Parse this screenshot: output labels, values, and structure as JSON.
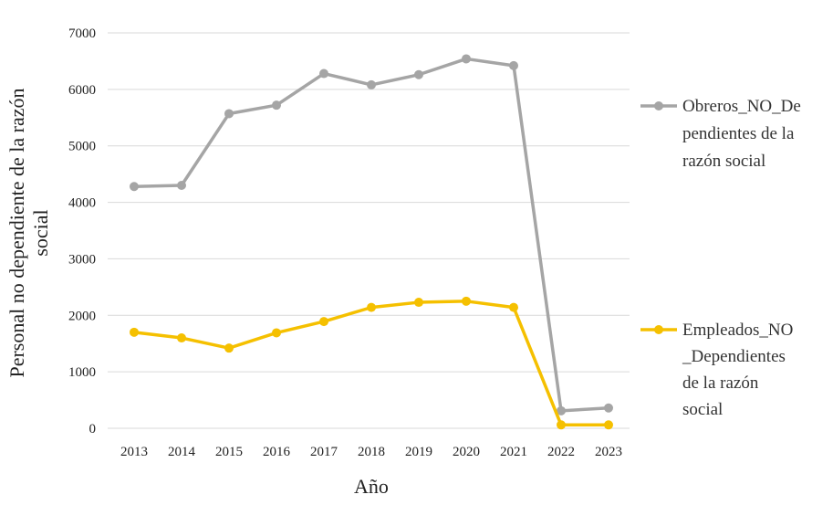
{
  "chart_data": {
    "type": "line",
    "xlabel": "Año",
    "ylabel_lines": [
      "Personal no dependiente de la razón",
      "social"
    ],
    "categories": [
      "2013",
      "2014",
      "2015",
      "2016",
      "2017",
      "2018",
      "2019",
      "2020",
      "2021",
      "2022",
      "2023"
    ],
    "ylim": [
      0,
      7000
    ],
    "yticks": [
      "0",
      "1000",
      "2000",
      "3000",
      "4000",
      "5000",
      "6000",
      "7000"
    ],
    "grid": "horizontal",
    "legend_position": "right",
    "series": [
      {
        "name": "Obreros_NO_Dependientes de la razón social",
        "legend_lines": [
          "Obreros_NO_De",
          "pendientes de la",
          "razón social"
        ],
        "color": "#a5a5a5",
        "values": [
          4280,
          4300,
          5570,
          5720,
          6280,
          6080,
          6260,
          6540,
          6420,
          310,
          360
        ]
      },
      {
        "name": "Empleados_NO_Dependientes de la razón social",
        "legend_lines": [
          "Empleados_NO",
          "_Dependientes",
          "de la razón",
          "social"
        ],
        "color": "#f5c000",
        "values": [
          1700,
          1600,
          1420,
          1690,
          1890,
          2140,
          2230,
          2250,
          2140,
          60,
          60
        ]
      }
    ]
  }
}
